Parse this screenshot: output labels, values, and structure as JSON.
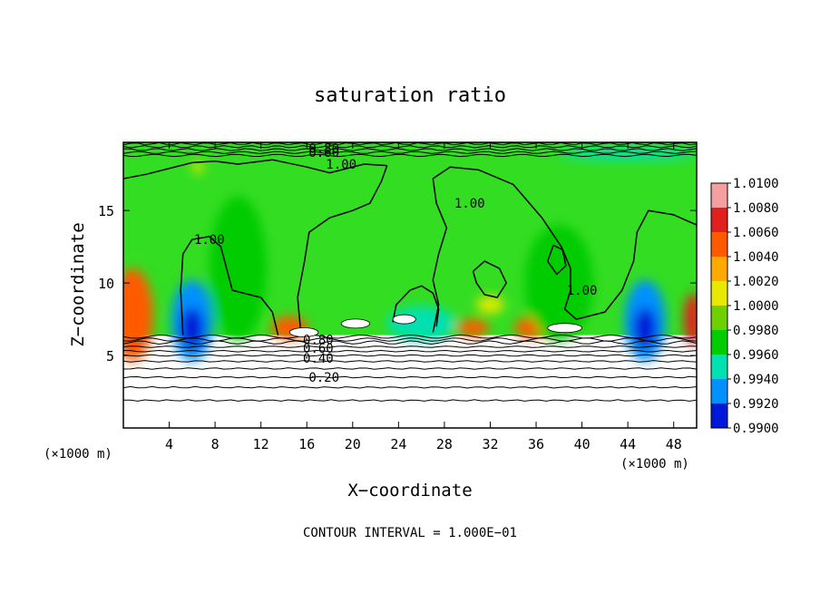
{
  "chart_data": {
    "type": "heatmap",
    "title": "saturation ratio",
    "xlabel": "X−coordinate",
    "ylabel": "Z−coordinate",
    "x_unit": "(×1000 m)",
    "y_unit": "(×1000 m)",
    "xlim": [
      0,
      50
    ],
    "ylim": [
      0,
      19.7
    ],
    "x_ticks": [
      4,
      8,
      12,
      16,
      20,
      24,
      28,
      32,
      36,
      40,
      44,
      48
    ],
    "y_ticks": [
      5,
      10,
      15
    ],
    "grid": false,
    "contour_interval_text": "CONTOUR INTERVAL = 1.000E−01",
    "colorbar": {
      "levels": [
        "1.0100",
        "1.0080",
        "1.0060",
        "1.0040",
        "1.0020",
        "1.0000",
        "0.9980",
        "0.9960",
        "0.9940",
        "0.9920",
        "0.9900"
      ],
      "colors": [
        "#f4a0a0",
        "#e0201c",
        "#ff5a00",
        "#ffaa00",
        "#e8e800",
        "#6fd000",
        "#00cc00",
        "#00e0b0",
        "#0090ff",
        "#0018d8",
        "#6a00a8"
      ]
    },
    "background_color": "#33dd22",
    "cloud_base_z": 6.4,
    "contour_labels": [
      {
        "text": "0.80",
        "x": 17.5,
        "z": 19.3
      },
      {
        "text": "0.60",
        "x": 17.5,
        "z": 19.0
      },
      {
        "text": "1.00",
        "x": 19.0,
        "z": 18.2
      },
      {
        "text": "1.00",
        "x": 30.2,
        "z": 15.5
      },
      {
        "text": "1.00",
        "x": 7.5,
        "z": 13.0
      },
      {
        "text": "1.00",
        "x": 40.0,
        "z": 9.5
      },
      {
        "text": "0.80",
        "x": 17.0,
        "z": 6.1
      },
      {
        "text": "0.60",
        "x": 17.0,
        "z": 5.5
      },
      {
        "text": "0.40",
        "x": 17.0,
        "z": 4.8
      },
      {
        "text": "0.20",
        "x": 17.5,
        "z": 3.5
      }
    ],
    "lower_contours_z": [
      6.3,
      6.1,
      5.9,
      5.6,
      5.3,
      5.0,
      4.6,
      4.1,
      3.5,
      2.8,
      1.9
    ],
    "upper_contours_z": [
      18.8,
      19.0,
      19.2,
      19.4,
      19.6
    ],
    "features": [
      {
        "level": "0.9940",
        "x": 6.0,
        "z": 7.4,
        "rx": 1.8,
        "rz": 2.8
      },
      {
        "level": "0.9920",
        "x": 6.0,
        "z": 6.9,
        "rx": 1.0,
        "rz": 1.4
      },
      {
        "level": "0.9940",
        "x": 45.5,
        "z": 7.4,
        "rx": 1.8,
        "rz": 2.8
      },
      {
        "level": "0.9920",
        "x": 45.5,
        "z": 6.9,
        "rx": 1.0,
        "rz": 1.4
      },
      {
        "level": "1.0080",
        "x": 0.6,
        "z": 7.5,
        "rx": 1.3,
        "rz": 2.2
      },
      {
        "level": "1.0060",
        "x": 0.8,
        "z": 7.8,
        "rx": 1.8,
        "rz": 3.2
      },
      {
        "level": "1.0080",
        "x": 49.7,
        "z": 7.5,
        "rx": 0.8,
        "rz": 1.8
      },
      {
        "level": "1.0060",
        "x": 14.5,
        "z": 6.9,
        "rx": 1.6,
        "rz": 0.8
      },
      {
        "level": "1.0060",
        "x": 30.5,
        "z": 6.9,
        "rx": 1.4,
        "rz": 0.6
      },
      {
        "level": "1.0060",
        "x": 35.5,
        "z": 6.9,
        "rx": 1.4,
        "rz": 0.7
      },
      {
        "level": "0.9960",
        "x": 26.0,
        "z": 7.2,
        "rx": 3.0,
        "rz": 1.2
      },
      {
        "level": "0.9980",
        "x": 10.0,
        "z": 11.0,
        "rx": 2.5,
        "rz": 5.0
      },
      {
        "level": "0.9980",
        "x": 38.0,
        "z": 10.0,
        "rx": 3.0,
        "rz": 4.0
      },
      {
        "level": "0.9960",
        "x": 44.0,
        "z": 18.9,
        "rx": 6.0,
        "rz": 0.4
      },
      {
        "level": "1.0020",
        "x": 6.5,
        "z": 18.0,
        "rx": 0.5,
        "rz": 0.4
      },
      {
        "level": "1.0020",
        "x": 32.0,
        "z": 8.5,
        "rx": 1.2,
        "rz": 0.6
      }
    ]
  }
}
